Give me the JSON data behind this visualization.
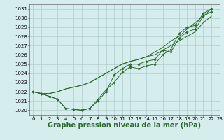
{
  "title": "Graphe pression niveau de la mer (hPa)",
  "background_color": "#d5eeed",
  "grid_color": "#b0cccc",
  "line_color": "#2d6a2d",
  "xlim": [
    -0.5,
    23
  ],
  "ylim": [
    1019.5,
    1031.5
  ],
  "yticks": [
    1020,
    1021,
    1022,
    1023,
    1024,
    1025,
    1026,
    1027,
    1028,
    1029,
    1030,
    1031
  ],
  "xticks": [
    0,
    1,
    2,
    3,
    4,
    5,
    6,
    7,
    8,
    9,
    10,
    11,
    12,
    13,
    14,
    15,
    16,
    17,
    18,
    19,
    20,
    21,
    22,
    23
  ],
  "series_with_markers": [
    [
      1022.0,
      1021.8,
      1021.5,
      1021.2,
      1020.2,
      1020.1,
      1020.0,
      1020.2,
      1021.2,
      1022.2,
      1023.0,
      1024.1,
      1024.7,
      1024.5,
      1024.8,
      1025.0,
      1026.0,
      1026.6,
      1028.3,
      1029.0,
      1029.2,
      1030.5,
      1031.0
    ],
    [
      1022.0,
      1021.8,
      1021.5,
      1021.2,
      1020.2,
      1020.1,
      1020.0,
      1020.2,
      1021.0,
      1022.0,
      1023.8,
      1024.5,
      1025.0,
      1025.0,
      1025.3,
      1025.5,
      1026.5,
      1026.3,
      1027.8,
      1028.5,
      1028.8,
      1030.2,
      1030.7
    ]
  ],
  "series_plain": [
    [
      1022.0,
      1021.8,
      1021.8,
      1022.0,
      1022.3,
      1022.5,
      1022.7,
      1023.0,
      1023.5,
      1024.0,
      1024.5,
      1025.0,
      1025.3,
      1025.5,
      1025.8,
      1026.0,
      1026.5,
      1027.0,
      1027.5,
      1028.0,
      1028.5,
      1029.5,
      1030.2
    ],
    [
      1022.0,
      1021.8,
      1021.8,
      1022.0,
      1022.3,
      1022.5,
      1022.7,
      1023.0,
      1023.5,
      1024.0,
      1024.5,
      1025.0,
      1025.3,
      1025.5,
      1025.8,
      1026.3,
      1026.8,
      1027.5,
      1028.0,
      1028.8,
      1029.5,
      1030.2,
      1031.0
    ]
  ],
  "fontsize_title": 7,
  "fontsize_ticks": 5
}
